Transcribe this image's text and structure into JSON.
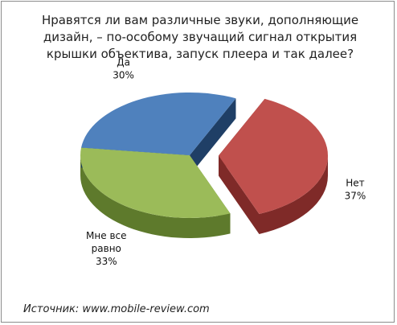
{
  "chart_data": {
    "type": "pie",
    "title": "Нравятся ли вам различные звуки, дополняющие дизайн, – по-особому звучащий сигнал открытия крышки объектива, запуск плеера и так далее?",
    "slices": [
      {
        "label": "Нет",
        "value": 37,
        "value_label": "37%",
        "color": "#c0504d",
        "dark": "#7f2a28",
        "exploded": true
      },
      {
        "label": "Мне все равно",
        "label_lines": [
          "Мне все",
          "равно"
        ],
        "value": 33,
        "value_label": "33%",
        "color": "#9bbb59",
        "dark": "#5e7a2c",
        "exploded": false
      },
      {
        "label": "Да",
        "value": 30,
        "value_label": "30%",
        "color": "#4f81bd",
        "dark": "#1f3f66",
        "exploded": false
      }
    ],
    "style": "3d-exploded-pie"
  },
  "source": "Источник: www.mobile-review.com"
}
